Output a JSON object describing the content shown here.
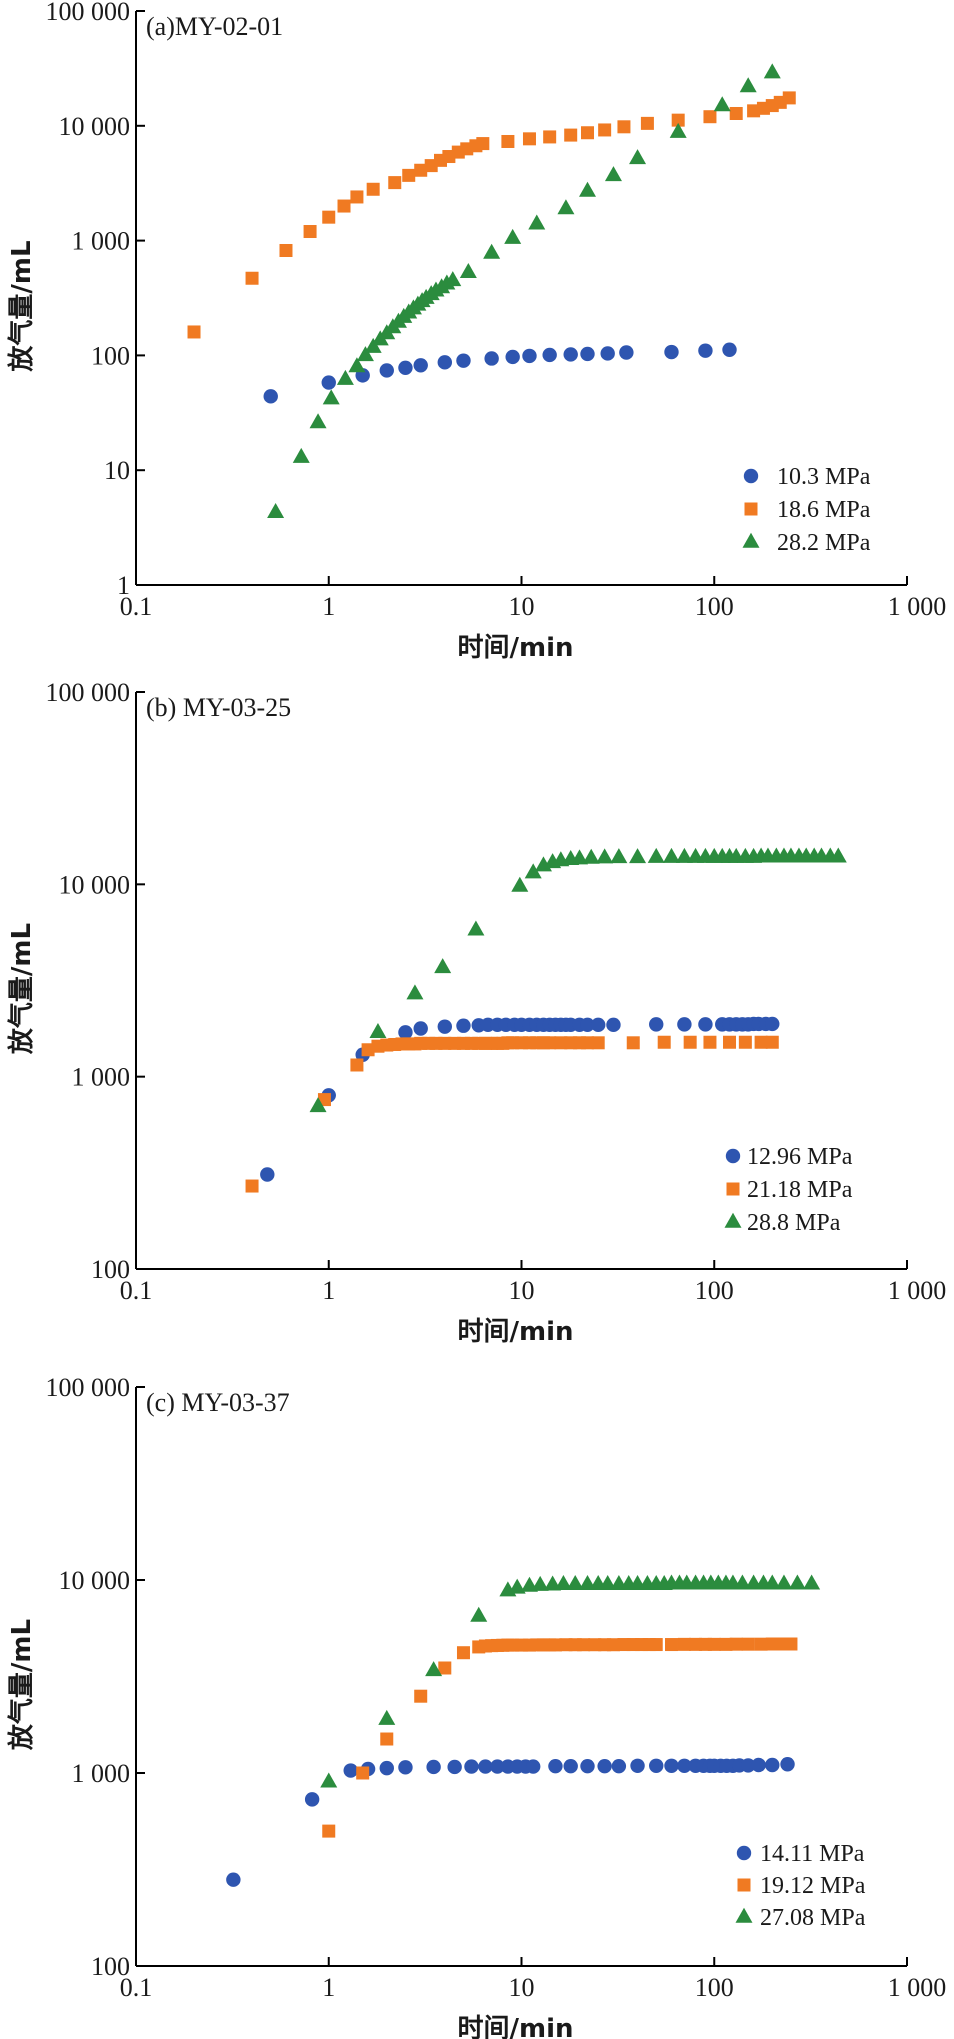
{
  "chart_data": [
    {
      "type": "scatter",
      "title": "(a)MY-02-01",
      "xlabel": "时间/min",
      "ylabel": "放气量/mL",
      "xscale": "log",
      "yscale": "log",
      "xlim": [
        0.1,
        1000
      ],
      "ylim": [
        1,
        100000
      ],
      "xticks": [
        0.1,
        1,
        10,
        100,
        1000
      ],
      "xtick_labels": [
        "0.1",
        "1",
        "10",
        "100",
        "1 000"
      ],
      "yticks": [
        1,
        10,
        100,
        1000,
        10000,
        100000
      ],
      "ytick_labels": [
        "1",
        "10",
        "100",
        "1 000",
        "10 000",
        "100 000"
      ],
      "grid": false,
      "legend_position": "bottom-right",
      "series": [
        {
          "name": "10.3 MPa",
          "marker": "circle",
          "color": "#2e55b0",
          "x": [
            0.5,
            1.0,
            1.5,
            2.0,
            2.5,
            3.0,
            4.0,
            5.0,
            7.0,
            9.0,
            11.0,
            14.0,
            18.0,
            22.0,
            28.0,
            35.0,
            60.0,
            90.0,
            120.0
          ],
          "y": [
            44,
            58,
            67,
            74,
            78,
            82,
            87,
            90,
            94,
            97,
            99,
            101,
            102,
            103,
            104,
            106,
            107,
            110,
            112
          ]
        },
        {
          "name": "18.6 MPa",
          "marker": "square",
          "color": "#f07a22",
          "x": [
            0.2,
            0.4,
            0.6,
            0.8,
            1.0,
            1.2,
            1.4,
            1.7,
            2.2,
            2.6,
            3.0,
            3.4,
            3.8,
            4.2,
            4.7,
            5.2,
            5.8,
            6.3,
            8.5,
            11.0,
            14.0,
            18.0,
            22.0,
            27.0,
            34.0,
            45.0,
            65.0,
            95.0,
            130.0,
            160.0,
            180.0,
            200.0,
            220.0,
            245.0
          ],
          "y": [
            160,
            470,
            820,
            1200,
            1600,
            2000,
            2400,
            2800,
            3200,
            3700,
            4100,
            4500,
            5000,
            5400,
            5900,
            6300,
            6700,
            7000,
            7300,
            7700,
            8000,
            8300,
            8700,
            9200,
            9800,
            10500,
            11200,
            12000,
            12800,
            13500,
            14200,
            15000,
            16000,
            17500
          ]
        },
        {
          "name": "28.2 MPa",
          "marker": "triangle",
          "color": "#2b8c3e",
          "x": [
            0.53,
            0.72,
            0.88,
            1.03,
            1.22,
            1.4,
            1.55,
            1.7,
            1.85,
            2.0,
            2.15,
            2.3,
            2.45,
            2.6,
            2.75,
            2.9,
            3.05,
            3.2,
            3.4,
            3.6,
            3.85,
            4.1,
            4.4,
            5.3,
            7.0,
            9.0,
            12.0,
            17.0,
            22.0,
            30.0,
            40.0,
            65.0,
            110.0,
            150.0,
            200.0
          ],
          "y": [
            4.3,
            13,
            26,
            42,
            62,
            80,
            100,
            118,
            137,
            155,
            175,
            195,
            215,
            235,
            255,
            275,
            295,
            315,
            340,
            365,
            390,
            420,
            450,
            530,
            780,
            1050,
            1400,
            1900,
            2700,
            3700,
            5200,
            8800,
            15000,
            22000,
            29000
          ]
        }
      ]
    },
    {
      "type": "scatter",
      "title": "(b) MY-03-25",
      "xlabel": "时间/min",
      "ylabel": "放气量/mL",
      "xscale": "log",
      "yscale": "log",
      "xlim": [
        0.1,
        1000
      ],
      "ylim": [
        100,
        100000
      ],
      "xticks": [
        0.1,
        1,
        10,
        100,
        1000
      ],
      "xtick_labels": [
        "0.1",
        "1",
        "10",
        "100",
        "1 000"
      ],
      "yticks": [
        100,
        1000,
        10000,
        100000
      ],
      "ytick_labels": [
        "100",
        "1 000",
        "10 000",
        "100 000"
      ],
      "grid": false,
      "legend_position": "bottom-right",
      "series": [
        {
          "name": "12.96 MPa",
          "marker": "circle",
          "color": "#2e55b0",
          "x": [
            0.48,
            1.0,
            1.5,
            2.5,
            3.0,
            4.0,
            5.0,
            6.0,
            6.7,
            7.5,
            8.3,
            9.2,
            10.0,
            11.0,
            12.0,
            13.0,
            14.0,
            15.0,
            16.0,
            17.0,
            18.0,
            20.0,
            22.0,
            25.0,
            30.0,
            50.0,
            70.0,
            90.0,
            110.0,
            120.0,
            130.0,
            140.0,
            150.0,
            160.0,
            170.0,
            185.0,
            200.0
          ],
          "y": [
            310,
            800,
            1300,
            1700,
            1780,
            1820,
            1840,
            1850,
            1860,
            1860,
            1860,
            1860,
            1860,
            1860,
            1860,
            1860,
            1860,
            1860,
            1860,
            1860,
            1860,
            1860,
            1860,
            1860,
            1860,
            1870,
            1870,
            1870,
            1870,
            1870,
            1870,
            1870,
            1870,
            1880,
            1880,
            1880,
            1880
          ]
        },
        {
          "name": "21.18 MPa",
          "marker": "square",
          "color": "#f07a22",
          "x": [
            0.4,
            0.95,
            1.4,
            1.6,
            1.8,
            2.0,
            2.2,
            2.4,
            2.6,
            2.8,
            3.0,
            3.3,
            3.6,
            4.0,
            4.5,
            5.0,
            5.5,
            6.0,
            6.5,
            7.0,
            7.5,
            8.0,
            8.5,
            9.0,
            10.0,
            11.0,
            12.0,
            13.0,
            14.0,
            16.0,
            18.0,
            20.0,
            22.0,
            25.0,
            38.0,
            55.0,
            75.0,
            95.0,
            120.0,
            145.0,
            175.0,
            200.0
          ],
          "y": [
            270,
            760,
            1150,
            1380,
            1440,
            1460,
            1470,
            1480,
            1480,
            1480,
            1490,
            1490,
            1490,
            1490,
            1490,
            1490,
            1490,
            1490,
            1490,
            1490,
            1490,
            1490,
            1500,
            1500,
            1500,
            1500,
            1500,
            1500,
            1500,
            1500,
            1500,
            1500,
            1500,
            1500,
            1500,
            1510,
            1510,
            1510,
            1510,
            1510,
            1510,
            1510
          ]
        },
        {
          "name": "28.8 MPa",
          "marker": "triangle",
          "color": "#2b8c3e",
          "x": [
            0.88,
            1.8,
            2.8,
            3.9,
            5.8,
            9.8,
            11.5,
            13.0,
            14.5,
            16.0,
            18.0,
            20.0,
            23.0,
            27.0,
            32.0,
            40.0,
            50.0,
            60.0,
            70.0,
            80.0,
            90.0,
            100.0,
            110.0,
            120.0,
            130.0,
            145.0,
            160.0,
            175.0,
            190.0,
            210.0,
            230.0,
            250.0,
            275.0,
            300.0,
            330.0,
            360.0,
            400.0,
            440.0
          ],
          "y": [
            700,
            1700,
            2700,
            3700,
            5800,
            9800,
            11500,
            12500,
            13000,
            13300,
            13500,
            13600,
            13700,
            13750,
            13800,
            13800,
            13850,
            13850,
            13850,
            13850,
            13850,
            13850,
            13850,
            13850,
            13850,
            13850,
            13850,
            13900,
            13900,
            13900,
            13900,
            13900,
            13900,
            13900,
            13900,
            13900,
            13900,
            13900
          ]
        }
      ]
    },
    {
      "type": "scatter",
      "title": "(c) MY-03-37",
      "xlabel": "时间/min",
      "ylabel": "放气量/mL",
      "xscale": "log",
      "yscale": "log",
      "xlim": [
        0.1,
        1000
      ],
      "ylim": [
        100,
        100000
      ],
      "xticks": [
        0.1,
        1,
        10,
        100,
        1000
      ],
      "xtick_labels": [
        "0.1",
        "1",
        "10",
        "100",
        "1 000"
      ],
      "yticks": [
        100,
        1000,
        10000,
        100000
      ],
      "ytick_labels": [
        "100",
        "1 000",
        "10 000",
        "100 000"
      ],
      "grid": false,
      "legend_position": "bottom-right",
      "series": [
        {
          "name": "14.11 MPa",
          "marker": "circle",
          "color": "#2e55b0",
          "x": [
            0.32,
            0.82,
            1.3,
            1.6,
            2.0,
            2.5,
            3.5,
            4.5,
            5.5,
            6.5,
            7.5,
            8.5,
            9.5,
            10.5,
            11.5,
            15.0,
            18.0,
            22.0,
            27.0,
            32.0,
            40.0,
            50.0,
            60.0,
            70.0,
            80.0,
            88.0,
            95.0,
            100.0,
            108.0,
            116.0,
            125.0,
            135.0,
            150.0,
            170.0,
            200.0,
            240.0
          ],
          "y": [
            280,
            730,
            1030,
            1050,
            1060,
            1070,
            1075,
            1075,
            1080,
            1080,
            1080,
            1080,
            1080,
            1080,
            1080,
            1085,
            1085,
            1085,
            1085,
            1085,
            1090,
            1090,
            1090,
            1090,
            1090,
            1090,
            1090,
            1090,
            1090,
            1090,
            1090,
            1095,
            1095,
            1100,
            1100,
            1110
          ]
        },
        {
          "name": "19.12 MPa",
          "marker": "square",
          "color": "#f07a22",
          "x": [
            1.0,
            1.5,
            2.0,
            3.0,
            4.0,
            5.0,
            6.0,
            6.5,
            7.0,
            7.5,
            8.0,
            8.5,
            9.0,
            10.0,
            11.0,
            12.0,
            13.0,
            14.0,
            15.0,
            17.0,
            19.0,
            21.0,
            24.0,
            27.0,
            30.0,
            34.0,
            38.0,
            42.0,
            46.0,
            50.0,
            60.0,
            70.0,
            80.0,
            90.0,
            100.0,
            115.0,
            130.0,
            150.0,
            175.0,
            200.0,
            225.0,
            250.0
          ],
          "y": [
            500,
            1000,
            1500,
            2500,
            3500,
            4200,
            4500,
            4550,
            4570,
            4580,
            4590,
            4600,
            4600,
            4600,
            4600,
            4610,
            4610,
            4610,
            4610,
            4620,
            4620,
            4620,
            4620,
            4620,
            4620,
            4630,
            4630,
            4630,
            4630,
            4630,
            4630,
            4640,
            4640,
            4640,
            4640,
            4640,
            4650,
            4650,
            4650,
            4660,
            4660,
            4660
          ]
        },
        {
          "name": "27.08 MPa",
          "marker": "triangle",
          "color": "#2b8c3e",
          "x": [
            1.0,
            2.0,
            3.5,
            6.0,
            8.5,
            9.5,
            11.0,
            12.5,
            14.5,
            16.5,
            19.0,
            22.0,
            25.0,
            28.0,
            32.0,
            36.0,
            40.0,
            45.0,
            50.0,
            55.0,
            60.0,
            66.0,
            72.0,
            80.0,
            88.0,
            96.0,
            105.0,
            115.0,
            125.0,
            140.0,
            160.0,
            180.0,
            200.0,
            230.0,
            270.0,
            320.0
          ],
          "y": [
            900,
            1900,
            3400,
            6500,
            8800,
            9100,
            9300,
            9400,
            9450,
            9500,
            9500,
            9500,
            9500,
            9500,
            9500,
            9500,
            9500,
            9500,
            9500,
            9500,
            9550,
            9550,
            9550,
            9550,
            9550,
            9550,
            9550,
            9550,
            9550,
            9550,
            9550,
            9550,
            9550,
            9550,
            9550,
            9550
          ]
        }
      ]
    }
  ]
}
